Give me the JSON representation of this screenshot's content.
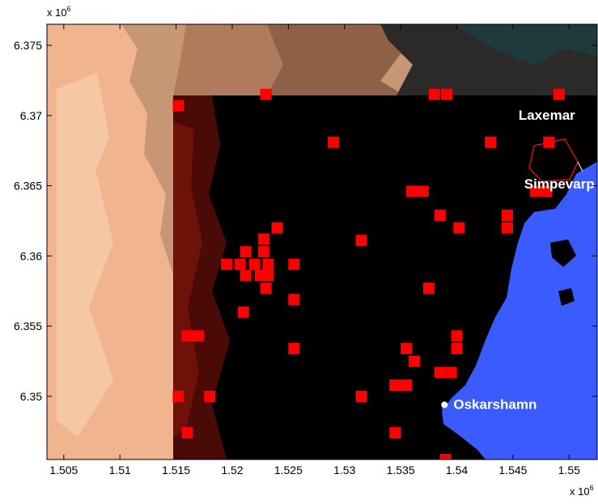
{
  "map": {
    "exponent_x": "x 10",
    "exponent_y": "x 10",
    "exponent_power": "6",
    "x_ticks": [
      "1.505",
      "1.51",
      "1.515",
      "1.52",
      "1.525",
      "1.53",
      "1.535",
      "1.54",
      "1.545",
      "1.55"
    ],
    "y_ticks": [
      "6.375",
      "6.37",
      "6.365",
      "6.36",
      "6.355",
      "6.35"
    ],
    "x_range": [
      1.5035,
      1.5525
    ],
    "y_range": [
      6.3455,
      6.3765
    ],
    "inner_region": {
      "x0": 1.5152,
      "x1": 1.5525,
      "y0": 6.3455,
      "y1": 6.3715
    },
    "labels": [
      {
        "text": "Laxemar",
        "x": 1.5455,
        "y": 6.3697,
        "color": "#ffffff"
      },
      {
        "text": "Simpevarp",
        "x": 1.546,
        "y": 6.3648,
        "color": "#ffffff"
      },
      {
        "text": "Oskarshamn",
        "x": 1.5397,
        "y": 6.3491,
        "color": "#ffffff"
      }
    ],
    "town_point": {
      "x": 1.5389,
      "y": 6.3494
    },
    "colors": {
      "sea": "#3a5cff",
      "inner_land": "#000000",
      "outer_land_light": "#f0b48f",
      "outer_land_mid": "#b07a5d",
      "outer_land_dark": "#2c2a28",
      "red_square": "#ff0000",
      "boundary": "#d01010"
    },
    "red_squares": [
      [
        1.5152,
        6.3707
      ],
      [
        1.523,
        6.3715
      ],
      [
        1.538,
        6.3715
      ],
      [
        1.5391,
        6.3715
      ],
      [
        1.5491,
        6.3715
      ],
      [
        1.529,
        6.3681
      ],
      [
        1.543,
        6.3681
      ],
      [
        1.5482,
        6.3681
      ],
      [
        1.536,
        6.3646
      ],
      [
        1.537,
        6.3646
      ],
      [
        1.547,
        6.3646
      ],
      [
        1.548,
        6.3646
      ],
      [
        1.5385,
        6.3629
      ],
      [
        1.5445,
        6.3629
      ],
      [
        1.524,
        6.362
      ],
      [
        1.5402,
        6.362
      ],
      [
        1.5445,
        6.362
      ],
      [
        1.5228,
        6.3612
      ],
      [
        1.5315,
        6.3611
      ],
      [
        1.5212,
        6.3603
      ],
      [
        1.5228,
        6.3603
      ],
      [
        1.5195,
        6.3594
      ],
      [
        1.5207,
        6.3594
      ],
      [
        1.522,
        6.3594
      ],
      [
        1.5232,
        6.3594
      ],
      [
        1.5255,
        6.3594
      ],
      [
        1.5212,
        6.3586
      ],
      [
        1.5225,
        6.3586
      ],
      [
        1.5232,
        6.3586
      ],
      [
        1.523,
        6.3577
      ],
      [
        1.5375,
        6.3577
      ],
      [
        1.5255,
        6.3569
      ],
      [
        1.521,
        6.356
      ],
      [
        1.516,
        6.3543
      ],
      [
        1.517,
        6.3543
      ],
      [
        1.54,
        6.3543
      ],
      [
        1.5255,
        6.3534
      ],
      [
        1.5355,
        6.3534
      ],
      [
        1.54,
        6.3534
      ],
      [
        1.5362,
        6.3525
      ],
      [
        1.5385,
        6.3517
      ],
      [
        1.5395,
        6.3517
      ],
      [
        1.5345,
        6.3508
      ],
      [
        1.5355,
        6.3508
      ],
      [
        1.5152,
        6.35
      ],
      [
        1.518,
        6.35
      ],
      [
        1.5315,
        6.35
      ],
      [
        1.516,
        6.3474
      ],
      [
        1.5345,
        6.3474
      ],
      [
        1.539,
        6.3455
      ]
    ]
  }
}
